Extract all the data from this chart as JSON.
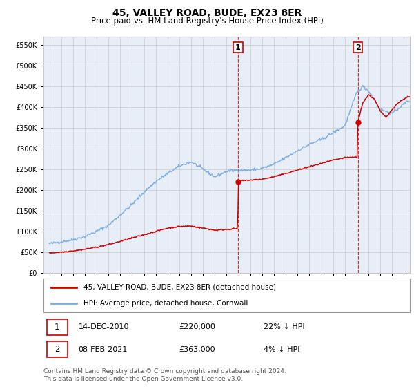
{
  "title": "45, VALLEY ROAD, BUDE, EX23 8ER",
  "subtitle": "Price paid vs. HM Land Registry's House Price Index (HPI)",
  "ytick_values": [
    0,
    50000,
    100000,
    150000,
    200000,
    250000,
    300000,
    350000,
    400000,
    450000,
    500000,
    550000
  ],
  "ylim": [
    0,
    570000
  ],
  "xlim_start": 1994.5,
  "xlim_end": 2025.5,
  "hpi_color": "#7aade0",
  "price_color": "#cc0000",
  "dashed_line_color": "#cc0000",
  "background_color": "#e8eef8",
  "grid_color": "#c8c8c8",
  "sale1_x": 2010.96,
  "sale1_y": 220000,
  "sale1_label": "1",
  "sale2_x": 2021.1,
  "sale2_y": 363000,
  "sale2_label": "2",
  "legend_label_price": "45, VALLEY ROAD, BUDE, EX23 8ER (detached house)",
  "legend_label_hpi": "HPI: Average price, detached house, Cornwall",
  "footnote": "Contains HM Land Registry data © Crown copyright and database right 2024.\nThis data is licensed under the Open Government Licence v3.0.",
  "title_fontsize": 10,
  "subtitle_fontsize": 8.5,
  "tick_fontsize": 7,
  "legend_fontsize": 7.5,
  "table_fontsize": 8,
  "footnote_fontsize": 6.5
}
